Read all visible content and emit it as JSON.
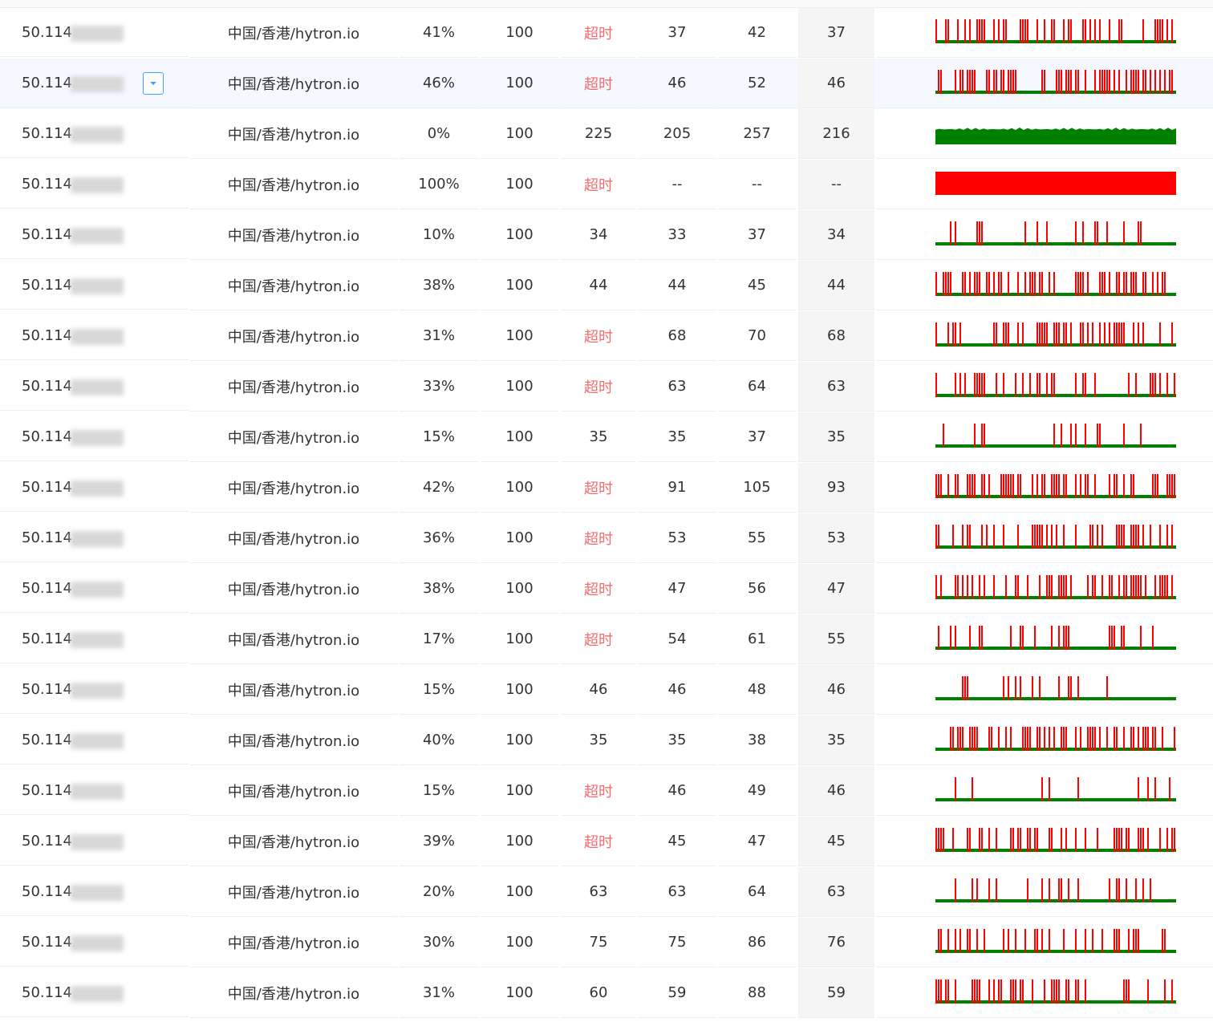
{
  "table": {
    "rows": [
      [
        "50.114.",
        "中国/香港/hytron.io",
        "41%",
        100,
        "超时",
        37,
        42,
        37
      ],
      [
        "50.114.",
        "中国/香港/hytron.io",
        "46%",
        100,
        "超时",
        46,
        52,
        46
      ],
      [
        "50.114.",
        "中国/香港/hytron.io",
        "0%",
        100,
        225,
        205,
        257,
        216
      ],
      [
        "50.114.",
        "中国/香港/hytron.io",
        "100%",
        100,
        "超时",
        "--",
        "--",
        "--"
      ],
      [
        "50.114.",
        "中国/香港/hytron.io",
        "10%",
        100,
        34,
        33,
        37,
        34
      ],
      [
        "50.114.",
        "中国/香港/hytron.io",
        "38%",
        100,
        44,
        44,
        45,
        44
      ],
      [
        "50.114.",
        "中国/香港/hytron.io",
        "31%",
        100,
        "超时",
        68,
        70,
        68
      ],
      [
        "50.114.",
        "中国/香港/hytron.io",
        "33%",
        100,
        "超时",
        63,
        64,
        63
      ],
      [
        "50.114.",
        "中国/香港/hytron.io",
        "15%",
        100,
        35,
        35,
        37,
        35
      ],
      [
        "50.114.",
        "中国/香港/hytron.io",
        "42%",
        100,
        "超时",
        91,
        105,
        93
      ],
      [
        "50.114.",
        "中国/香港/hytron.io",
        "36%",
        100,
        "超时",
        53,
        55,
        53
      ],
      [
        "50.114.",
        "中国/香港/hytron.io",
        "38%",
        100,
        "超时",
        47,
        56,
        47
      ],
      [
        "50.114.",
        "中国/香港/hytron.io",
        "17%",
        100,
        "超时",
        54,
        61,
        55
      ],
      [
        "50.114.",
        "中国/香港/hytron.io",
        "15%",
        100,
        46,
        46,
        48,
        46
      ],
      [
        "50.114.",
        "中国/香港/hytron.io",
        "40%",
        100,
        35,
        35,
        38,
        35
      ],
      [
        "50.114.",
        "中国/香港/hytron.io",
        "15%",
        100,
        "超时",
        46,
        49,
        46
      ],
      [
        "50.114.",
        "中国/香港/hytron.io",
        "39%",
        100,
        "超时",
        45,
        47,
        45
      ],
      [
        "50.114.",
        "中国/香港/hytron.io",
        "20%",
        100,
        63,
        63,
        64,
        63
      ],
      [
        "50.114.",
        "中国/香港/hytron.io",
        "30%",
        100,
        75,
        75,
        86,
        76
      ],
      [
        "50.114.",
        "中国/香港/hytron.io",
        "31%",
        100,
        60,
        59,
        88,
        59
      ]
    ],
    "timeout_color": "#f56c6c"
  }
}
